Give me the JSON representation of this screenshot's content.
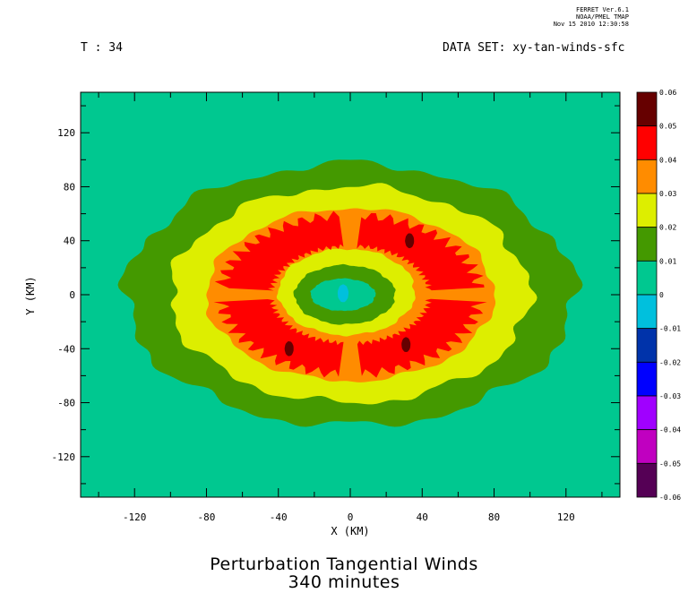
{
  "header": {
    "ferret_line": "FERRET  Ver.6.1",
    "org_line": "NOAA/PMEL TMAP",
    "date_line": "Nov 15 2010 12:30:58"
  },
  "time_label": "T : 34",
  "dataset_label": "DATA SET: xy-tan-winds-sfc",
  "title_line1": "Perturbation Tangential Winds",
  "title_line2": "340 minutes",
  "chart_data": {
    "type": "heatmap",
    "xlabel": "X (KM)",
    "ylabel": "Y (KM)",
    "xlim": [
      -150,
      150
    ],
    "ylim": [
      -150,
      150
    ],
    "x_ticks": [
      "-120",
      "-80",
      "-40",
      "0",
      "40",
      "80",
      "120"
    ],
    "y_ticks": [
      "120",
      "80",
      "40",
      "0",
      "-40",
      "-80",
      "-120"
    ],
    "colorbar": {
      "levels": [
        "0.06",
        "0.05",
        "0.04",
        "0.03",
        "0.02",
        "0.01",
        "0",
        "-0.01",
        "-0.02",
        "-0.03",
        "-0.04",
        "-0.05",
        "-0.06"
      ],
      "colors": [
        "#660000",
        "#ff0000",
        "#ff8c00",
        "#ddee00",
        "#449900",
        "#00c890",
        "#00c0dd",
        "#0033aa",
        "#0000ff",
        "#a000ff",
        "#c000c0",
        "#550055"
      ]
    },
    "regions": [
      {
        "level_range": "0.01 to 0.02",
        "color": "#449900",
        "center": [
          0,
          0
        ],
        "rx": 125,
        "ry": 97
      },
      {
        "level_range": "0.02 to 0.03",
        "color": "#ddee00",
        "center": [
          0,
          0
        ],
        "rx": 100,
        "ry": 80
      },
      {
        "level_range": "0.03 to 0.04",
        "color": "#ff8c00",
        "center": [
          0,
          0
        ],
        "rx": 80,
        "ry": 64
      },
      {
        "level_range": "0.02 to 0.03",
        "color": "#ddee00",
        "center": [
          -2,
          2
        ],
        "rx": 38,
        "ry": 32
      },
      {
        "level_range": "0.01 to 0.02",
        "color": "#449900",
        "center": [
          -3,
          0
        ],
        "rx": 28,
        "ry": 22
      },
      {
        "level_range": "0 to 0.01",
        "color": "#00c890",
        "center": [
          -4,
          0
        ],
        "rx": 18,
        "ry": 12
      },
      {
        "level_range": "0.04 to 0.05",
        "color": "#ff0000",
        "sector": "NW",
        "center": [
          -40,
          30
        ]
      },
      {
        "level_range": "0.04 to 0.05",
        "color": "#ff0000",
        "sector": "NE",
        "center": [
          45,
          25
        ]
      },
      {
        "level_range": "0.04 to 0.05",
        "color": "#ff0000",
        "sector": "SW",
        "center": [
          -35,
          -35
        ]
      },
      {
        "level_range": "0.04 to 0.05",
        "color": "#ff0000",
        "sector": "SE",
        "center": [
          35,
          -30
        ]
      },
      {
        "level_range": "0.05 to 0.06",
        "color": "#660000",
        "center": [
          33,
          40
        ]
      },
      {
        "level_range": "0.05 to 0.06",
        "color": "#660000",
        "center": [
          -34,
          -40
        ]
      },
      {
        "level_range": "0.05 to 0.06",
        "color": "#660000",
        "center": [
          31,
          -37
        ]
      },
      {
        "level_range": "-0.01 to 0",
        "color": "#00c0dd",
        "center": [
          -4,
          1
        ]
      }
    ]
  }
}
